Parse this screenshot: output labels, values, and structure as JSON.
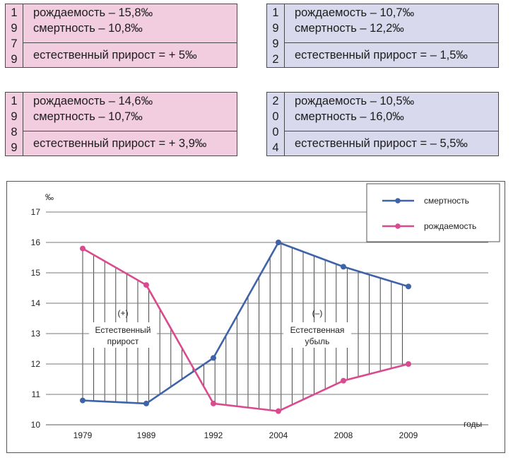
{
  "stat_boxes": [
    {
      "digits": [
        "1",
        "9",
        "7",
        "9"
      ],
      "birth": "рождаемость – 15,8‰",
      "death": "смертность – 10,8‰",
      "natural": "естественный прирост = + 5‰",
      "color": "#f2cde0"
    },
    {
      "digits": [
        "1",
        "9",
        "9",
        "2"
      ],
      "birth": "рождаемость – 10,7‰",
      "death": "смертность – 12,2‰",
      "natural": "естественный прирост = – 1,5‰",
      "color": "#d8d9ec"
    },
    {
      "digits": [
        "1",
        "9",
        "8",
        "9"
      ],
      "birth": "рождаемость – 14,6‰",
      "death": "смертность – 10,7‰",
      "natural": "естественный прирост = + 3,9‰",
      "color": "#f2cde0"
    },
    {
      "digits": [
        "2",
        "0",
        "0",
        "4"
      ],
      "birth": "рождаемость – 10,5‰",
      "death": "смертность – 16,0‰",
      "natural": "естественный прирост = – 5,5‰",
      "color": "#d8d9ec"
    }
  ],
  "chart_data": {
    "type": "line",
    "categories": [
      "1979",
      "1989",
      "1992",
      "2004",
      "2008",
      "2009"
    ],
    "series": [
      {
        "name": "смертность",
        "values": [
          10.8,
          10.7,
          12.2,
          16.0,
          15.2,
          14.55
        ],
        "color": "#3f63a8"
      },
      {
        "name": "рождаемость",
        "values": [
          15.8,
          14.6,
          10.7,
          10.45,
          11.45,
          12.0
        ],
        "color": "#d94b8e"
      }
    ],
    "ylabel": "‰",
    "xlabel": "годы",
    "ylim": [
      10,
      17
    ],
    "yticks": [
      10,
      11,
      12,
      13,
      14,
      15,
      16,
      17
    ],
    "grid": true,
    "legend_position": "top-right",
    "annotations": [
      {
        "sign": "(+)",
        "line1": "Естественный",
        "line2": "прирост"
      },
      {
        "sign": "(–)",
        "line1": "Естественная",
        "line2": "убыль"
      }
    ]
  }
}
